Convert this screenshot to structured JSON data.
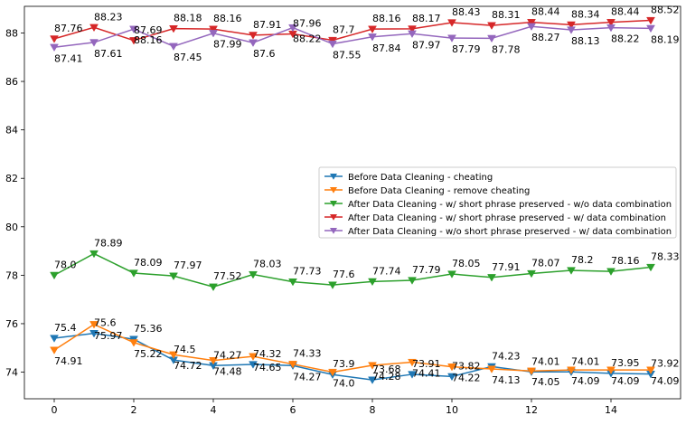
{
  "chart_data": {
    "type": "line",
    "title": "",
    "xlabel": "",
    "ylabel": "",
    "xlim": [
      -0.75,
      15.75
    ],
    "ylim": [
      72.9,
      89.1
    ],
    "xticks": [
      0,
      2,
      4,
      6,
      8,
      10,
      12,
      14
    ],
    "yticks": [
      74,
      76,
      78,
      80,
      82,
      84,
      86,
      88
    ],
    "grid": false,
    "legend_position": "center-right",
    "x": [
      0,
      1,
      2,
      3,
      4,
      5,
      6,
      7,
      8,
      9,
      10,
      11,
      12,
      13,
      14,
      15
    ],
    "series": [
      {
        "name": "Before Data Cleaning - cheating",
        "color": "#1f77b4",
        "marker": "triangle-down",
        "values": [
          75.4,
          75.6,
          75.36,
          74.5,
          74.27,
          74.32,
          74.27,
          73.9,
          73.68,
          73.91,
          73.82,
          74.23,
          74.01,
          74.01,
          73.95,
          73.92
        ],
        "labels": [
          "75.4",
          "75.6",
          "75.36",
          "74.5",
          "74.27",
          "74.32",
          "74.27",
          "73.9",
          "73.68",
          "73.91",
          "73.82",
          "74.23",
          "74.01",
          "74.01",
          "73.95",
          "73.92"
        ],
        "label_side": [
          "above",
          "above",
          "above",
          "above",
          "above",
          "above",
          "below",
          "above",
          "above",
          "above",
          "above",
          "above",
          "above",
          "above",
          "above",
          "above"
        ]
      },
      {
        "name": "Before Data Cleaning - remove cheating",
        "color": "#ff7f0e",
        "marker": "triangle-down",
        "values": [
          74.91,
          75.97,
          75.22,
          74.72,
          74.48,
          74.65,
          74.33,
          74.0,
          74.28,
          74.41,
          74.22,
          74.13,
          74.05,
          74.09,
          74.09,
          74.09
        ],
        "labels": [
          "74.91",
          "75.97",
          "75.22",
          "74.72",
          "74.48",
          "74.65",
          "74.33",
          "74.0",
          "74.28",
          "74.41",
          "74.22",
          "74.13",
          "74.05",
          "74.09",
          "74.09",
          "74.09"
        ],
        "label_side": [
          "below",
          "below",
          "below",
          "below",
          "below",
          "below",
          "above",
          "below",
          "below",
          "below",
          "below",
          "below",
          "below",
          "below",
          "below",
          "below"
        ]
      },
      {
        "name": "After Data Cleaning - w/ short phrase preserved - w/o data combination",
        "color": "#2ca02c",
        "marker": "triangle-down",
        "values": [
          78.0,
          78.89,
          78.09,
          77.97,
          77.52,
          78.03,
          77.73,
          77.6,
          77.74,
          77.79,
          78.05,
          77.91,
          78.07,
          78.2,
          78.16,
          78.33
        ],
        "labels": [
          "78.0",
          "78.89",
          "78.09",
          "77.97",
          "77.52",
          "78.03",
          "77.73",
          "77.6",
          "77.74",
          "77.79",
          "78.05",
          "77.91",
          "78.07",
          "78.2",
          "78.16",
          "78.33"
        ],
        "label_side": [
          "above",
          "above",
          "above",
          "above",
          "above",
          "above",
          "above",
          "above",
          "above",
          "above",
          "above",
          "above",
          "above",
          "above",
          "above",
          "above"
        ]
      },
      {
        "name": "After Data Cleaning - w/ short phrase preserved - w/ data combination",
        "color": "#d62728",
        "marker": "triangle-down",
        "values": [
          87.76,
          88.23,
          87.69,
          88.18,
          88.16,
          87.91,
          87.96,
          87.7,
          88.16,
          88.17,
          88.43,
          88.31,
          88.44,
          88.34,
          88.44,
          88.52
        ],
        "labels": [
          "87.76",
          "88.23",
          "87.69",
          "88.18",
          "88.16",
          "87.91",
          "87.96",
          "87.7",
          "88.16",
          "88.17",
          "88.43",
          "88.31",
          "88.44",
          "88.34",
          "88.44",
          "88.52"
        ],
        "label_side": [
          "above",
          "above",
          "above",
          "above",
          "above",
          "above",
          "above",
          "above",
          "above",
          "above",
          "above",
          "above",
          "above",
          "above",
          "above",
          "above"
        ]
      },
      {
        "name": "After Data Cleaning - w/o short phrase preserved - w/ data combination",
        "color": "#9467bd",
        "marker": "triangle-down",
        "values": [
          87.41,
          87.61,
          88.16,
          87.45,
          87.99,
          87.6,
          88.22,
          87.55,
          87.84,
          87.97,
          87.79,
          87.78,
          88.27,
          88.13,
          88.22,
          88.19
        ],
        "labels": [
          "87.41",
          "87.61",
          "88.16",
          "87.45",
          "87.99",
          "87.6",
          "88.22",
          "87.55",
          "87.84",
          "87.97",
          "87.79",
          "87.78",
          "88.27",
          "88.13",
          "88.22",
          "88.19"
        ],
        "label_side": [
          "below",
          "below",
          "below",
          "below",
          "below",
          "below",
          "below",
          "below",
          "below",
          "below",
          "below",
          "below",
          "below",
          "below",
          "below",
          "below"
        ]
      }
    ]
  }
}
